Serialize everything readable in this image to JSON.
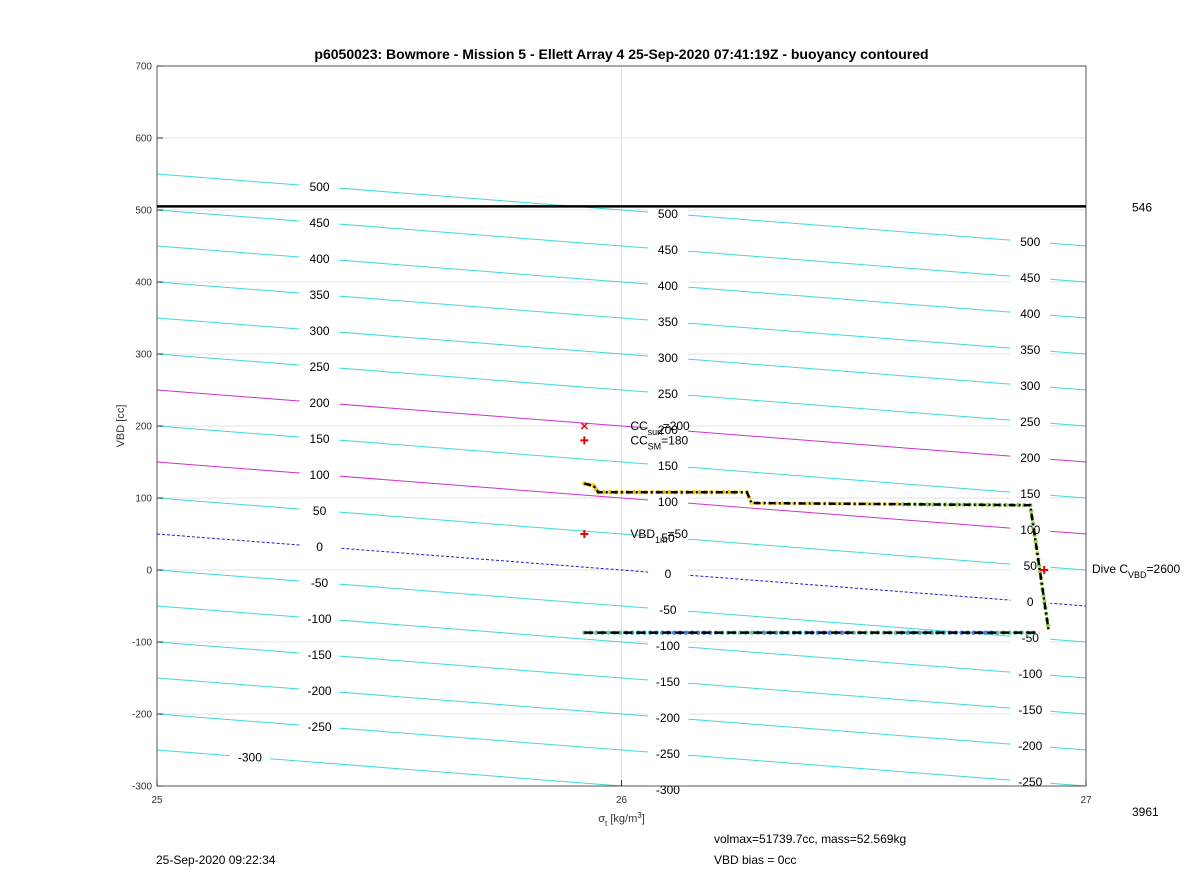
{
  "chart_data": {
    "type": "line",
    "title": "p6050023: Bowmore - Mission 5 - Ellett Array 4 25-Sep-2020 07:41:19Z - buoyancy contoured",
    "xlabel": "σ_t [kg/m^3]",
    "ylabel": "VBD [cc]",
    "xlim": [
      25,
      27
    ],
    "ylim": [
      -300,
      700
    ],
    "x_ticks": [
      25,
      26,
      27
    ],
    "y_ticks": [
      -300,
      -200,
      -100,
      0,
      100,
      200,
      300,
      400,
      500,
      600,
      700
    ],
    "grid": true,
    "buoyancy_contours": {
      "levels": [
        -300,
        -250,
        -200,
        -150,
        -100,
        -50,
        0,
        50,
        100,
        150,
        200,
        250,
        300,
        350,
        400,
        450,
        500
      ],
      "slope_cc_per_unit": -50,
      "highlighted": [
        {
          "level": 0,
          "color": "#1f1fd0",
          "style": "dashed"
        },
        {
          "level": 100,
          "color": "#cc33cc",
          "style": "solid"
        },
        {
          "level": 200,
          "color": "#cc33cc",
          "style": "solid"
        }
      ],
      "default_color": "#40d8d8",
      "label_columns": [
        {
          "x": 25.35,
          "labels": [
            500,
            450,
            400,
            350,
            300,
            250,
            200,
            150,
            100,
            50,
            0,
            -50,
            -100,
            -150,
            -200,
            -250
          ]
        },
        {
          "x": 25.2,
          "labels": [
            -300
          ]
        },
        {
          "x": 26.1,
          "labels": [
            500,
            450,
            400,
            350,
            300,
            250,
            200,
            150,
            100,
            50,
            0,
            -50,
            -100,
            -150,
            -200,
            -250,
            -300
          ]
        },
        {
          "x": 26.88,
          "labels": [
            500,
            450,
            400,
            350,
            300,
            250,
            200,
            150,
            100,
            50,
            0,
            -50,
            -100,
            -150,
            -200,
            -250
          ]
        }
      ]
    },
    "reference_line": {
      "y": 505,
      "label": "546"
    },
    "markers": [
      {
        "x": 25.92,
        "y": 200,
        "symbol": "x",
        "label_main": "CC",
        "label_sub": "surf",
        "label_end": "=200"
      },
      {
        "x": 25.92,
        "y": 180,
        "symbol": "+",
        "label_main": "CC",
        "label_sub": "SM",
        "label_end": "=180"
      },
      {
        "x": 25.92,
        "y": 50,
        "symbol": "+",
        "label_main": "VBD",
        "label_sub": "1m",
        "label_end": "=50"
      },
      {
        "x": 26.91,
        "y": 0,
        "symbol": "+"
      }
    ],
    "dive_label": {
      "main": "Dive C",
      "sub": "VBD",
      "end": "=2600"
    },
    "series": [
      {
        "points": [
          [
            25.92,
            120
          ],
          [
            25.94,
            117
          ],
          [
            25.95,
            108
          ],
          [
            26.27,
            108
          ],
          [
            26.28,
            93
          ],
          [
            26.88,
            90
          ],
          [
            26.92,
            -86
          ]
        ]
      },
      {
        "points": [
          [
            25.92,
            -87
          ],
          [
            26.9,
            -87
          ]
        ]
      }
    ],
    "right_axis_bottom_label": "3961"
  },
  "footer": {
    "timestamp": "25-Sep-2020 09:22:34",
    "volmax": "volmax=51739.7cc, mass=52.569kg",
    "vbd_bias": "VBD bias = 0cc"
  }
}
